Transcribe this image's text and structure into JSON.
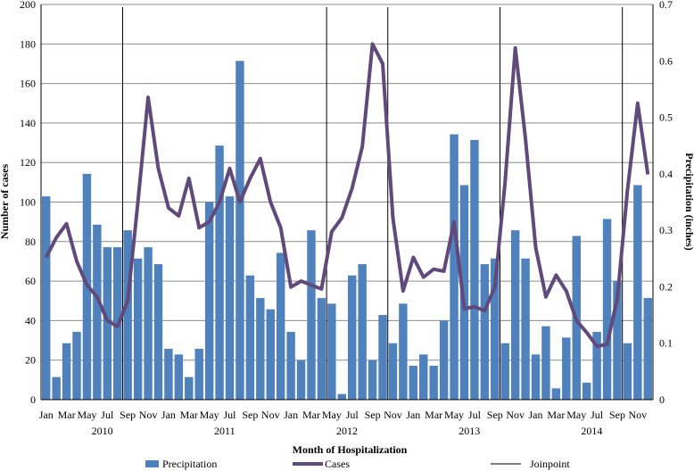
{
  "chart_data": {
    "type": "bar+line",
    "title": "",
    "xlabel": "Month of Hospitalization",
    "ylabel_left": "Number of cases",
    "ylabel_right": "Precipitation (inches)",
    "ylim_left": [
      0,
      200
    ],
    "ylim_right": [
      0,
      0.7
    ],
    "yticks_left": [
      "0",
      "20",
      "40",
      "60",
      "80",
      "100",
      "120",
      "140",
      "160",
      "180",
      "200"
    ],
    "yticks_right": [
      "0",
      "0.1",
      "0.2",
      "0.3",
      "0.4",
      "0.5",
      "0.6",
      "0.7"
    ],
    "grid": true,
    "legend_position": "bottom",
    "month_labels": [
      "Jan",
      "Mar",
      "May",
      "Jul",
      "Sep",
      "Nov",
      "Jan",
      "Mar",
      "May",
      "Jul",
      "Sep",
      "Nov",
      "Jan",
      "Mar",
      "May",
      "Jul",
      "Sep",
      "Nov",
      "Jan",
      "Mar",
      "May",
      "Jul",
      "Sep",
      "Nov",
      "Jan",
      "Mar",
      "May",
      "Jul",
      "Sep",
      "Nov"
    ],
    "year_labels": [
      {
        "label": "2010",
        "month_index": 6
      },
      {
        "label": "2011",
        "month_index": 18
      },
      {
        "label": "2012",
        "month_index": 30
      },
      {
        "label": "2013",
        "month_index": 42
      },
      {
        "label": "2014",
        "month_index": 54
      }
    ],
    "series": [
      {
        "name": "Precipitation",
        "type": "bar",
        "axis": "right",
        "color": "#4f81bd",
        "values": [
          0.36,
          0.04,
          0.1,
          0.12,
          0.4,
          0.31,
          0.27,
          0.27,
          0.3,
          0.25,
          0.27,
          0.24,
          0.09,
          0.08,
          0.04,
          0.09,
          0.35,
          0.45,
          0.36,
          0.6,
          0.22,
          0.18,
          0.16,
          0.26,
          0.12,
          0.07,
          0.3,
          0.18,
          0.17,
          0.01,
          0.22,
          0.24,
          0.07,
          0.15,
          0.1,
          0.17,
          0.06,
          0.08,
          0.06,
          0.14,
          0.47,
          0.38,
          0.46,
          0.24,
          0.25,
          0.1,
          0.3,
          0.25,
          0.08,
          0.13,
          0.02,
          0.11,
          0.29,
          0.03,
          0.12,
          0.32,
          0.21,
          0.1,
          0.38,
          0.18
        ]
      },
      {
        "name": "Cases",
        "type": "line",
        "axis": "left",
        "color": "#604a7b",
        "values": [
          72,
          82,
          89,
          70,
          58,
          52,
          40,
          37,
          50,
          100,
          153,
          117,
          97,
          93,
          112,
          87,
          90,
          100,
          117,
          100,
          112,
          122,
          100,
          87,
          57,
          60,
          58,
          56,
          85,
          92,
          107,
          128,
          180,
          170,
          92,
          55,
          72,
          62,
          66,
          65,
          90,
          46,
          47,
          45,
          57,
          110,
          178,
          132,
          77,
          52,
          63,
          55,
          40,
          34,
          27,
          28,
          51,
          106,
          150,
          114
        ]
      },
      {
        "name": "Joinpoint",
        "type": "vline",
        "color": "#000000",
        "month_indices": [
          8,
          28,
          34,
          45,
          57
        ]
      }
    ]
  }
}
